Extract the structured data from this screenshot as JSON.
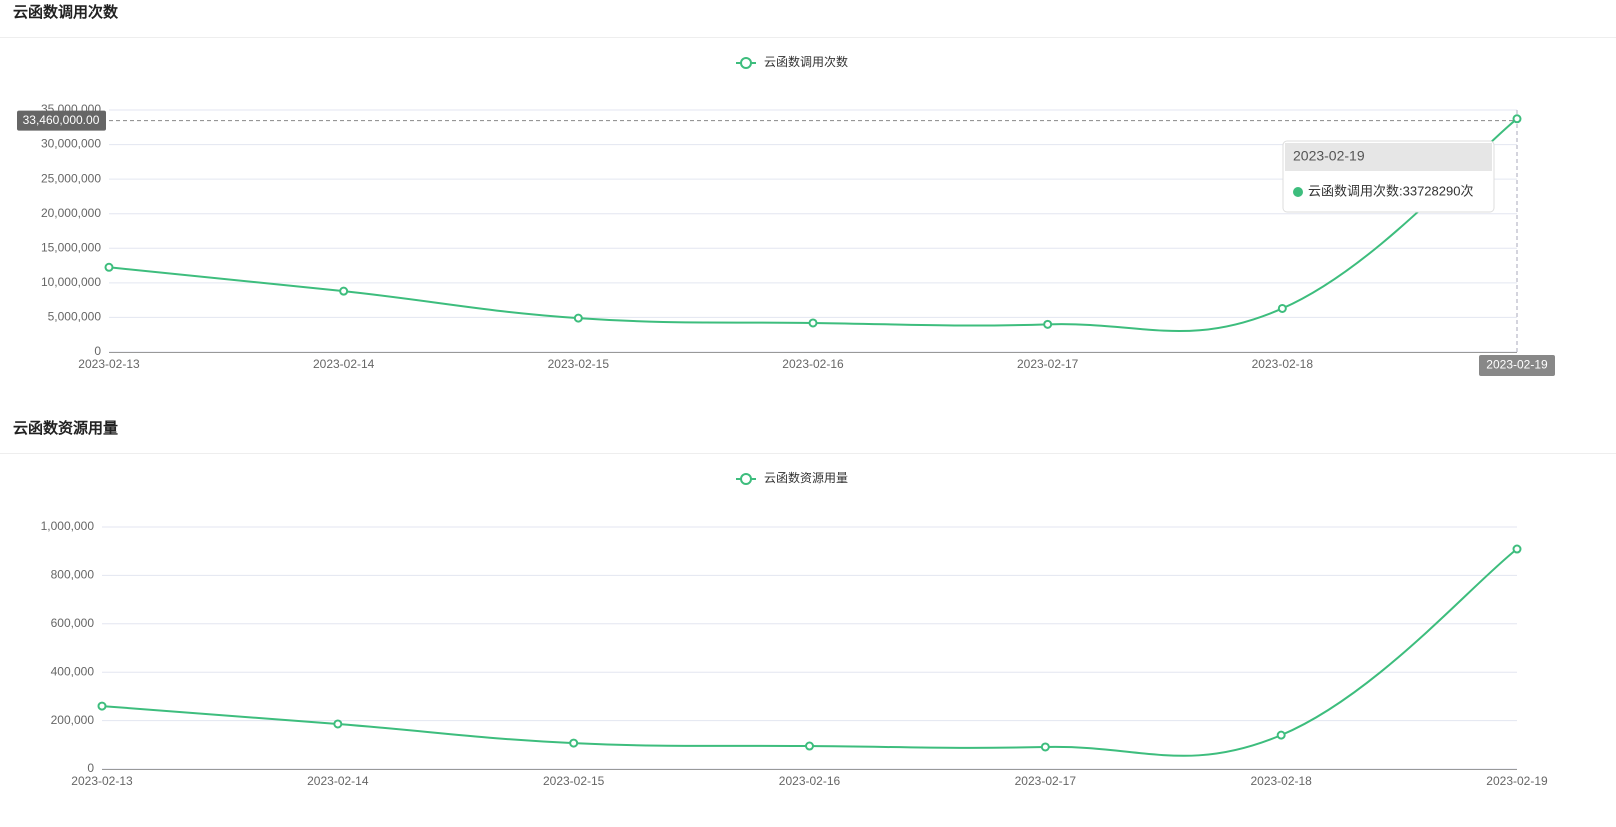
{
  "chart_data": [
    {
      "type": "line",
      "title": "云函数调用次数",
      "categories": [
        "2023-02-13",
        "2023-02-14",
        "2023-02-15",
        "2023-02-16",
        "2023-02-17",
        "2023-02-18",
        "2023-02-19"
      ],
      "series": [
        {
          "name": "云函数调用次数",
          "color": "#3dbd7d",
          "values": [
            12250000,
            8800000,
            4900000,
            4200000,
            4000000,
            6300000,
            33728290
          ]
        }
      ],
      "ylim": [
        0,
        35000000
      ],
      "yticks": [
        0,
        {
          "value": 5000000,
          "label": "5,000,000"
        },
        {
          "value": 10000000,
          "label": "10,000,000"
        },
        {
          "value": 15000000,
          "label": "15,000,000"
        },
        {
          "value": 20000000,
          "label": "20,000,000"
        },
        {
          "value": 25000000,
          "label": "25,000,000"
        },
        {
          "value": 30000000,
          "label": "30,000,000"
        },
        {
          "value": 35000000,
          "label": "35,000,000"
        }
      ],
      "grid": true,
      "legend": "top",
      "axis_pointer": {
        "y": {
          "value": 33460000,
          "label": "33,460,000.00"
        },
        "x": "2023-02-19"
      },
      "tooltip": {
        "title": "2023-02-19",
        "text": "云函数调用次数:33728290次"
      }
    },
    {
      "type": "line",
      "title": "云函数资源用量",
      "categories": [
        "2023-02-13",
        "2023-02-14",
        "2023-02-15",
        "2023-02-16",
        "2023-02-17",
        "2023-02-18",
        "2023-02-19"
      ],
      "series": [
        {
          "name": "云函数资源用量",
          "color": "#3dbd7d",
          "values": [
            260000,
            186000,
            107000,
            95000,
            91000,
            140000,
            909000
          ]
        }
      ],
      "ylim": [
        0,
        1000000
      ],
      "yticks": [
        0,
        {
          "value": 200000,
          "label": "200,000"
        },
        {
          "value": 400000,
          "label": "400,000"
        },
        {
          "value": 600000,
          "label": "600,000"
        },
        {
          "value": 800000,
          "label": "800,000"
        },
        {
          "value": 1000000,
          "label": "1,000,000"
        }
      ],
      "grid": true,
      "legend": "top"
    }
  ]
}
